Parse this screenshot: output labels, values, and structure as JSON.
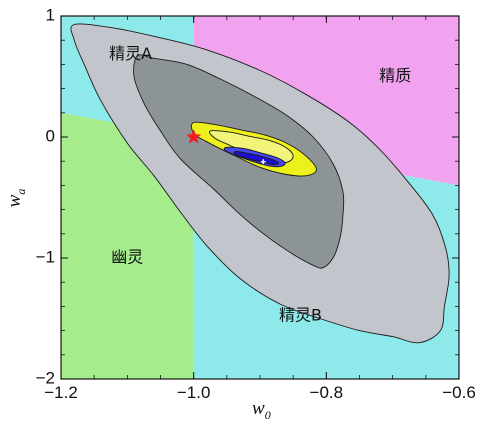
{
  "chart_data": {
    "type": "contour",
    "title": "",
    "xlabel": {
      "symbol": "w",
      "subscript": "0"
    },
    "ylabel": {
      "symbol": "w",
      "subscript": "a"
    },
    "xlim": [
      -1.2,
      -0.6
    ],
    "ylim": [
      -2,
      1
    ],
    "xticks": [
      {
        "value": -1.2,
        "label": "−1.2"
      },
      {
        "value": -1.0,
        "label": "−1.0"
      },
      {
        "value": -0.8,
        "label": "−0.8"
      },
      {
        "value": -0.6,
        "label": "−0.6"
      }
    ],
    "yticks": [
      {
        "value": 1,
        "label": "1"
      },
      {
        "value": 0,
        "label": "0"
      },
      {
        "value": -1,
        "label": "−1"
      },
      {
        "value": -2,
        "label": "−2"
      }
    ],
    "regions": [
      {
        "name": "ghost",
        "label": "幽灵",
        "color": "#a4ec8c",
        "polygon": [
          [
            -1.2,
            0.2
          ],
          [
            -1.0,
            0.0
          ],
          [
            -1.0,
            -2.0
          ],
          [
            -1.2,
            -2.0
          ]
        ],
        "label_at": [
          -1.1,
          -1.0
        ]
      },
      {
        "name": "phantom-a",
        "label": "精灵A",
        "color": "#8eeaea",
        "polygon": [
          [
            -1.2,
            1.0
          ],
          [
            -1.0,
            1.0
          ],
          [
            -1.0,
            0.0
          ],
          [
            -1.2,
            0.2
          ]
        ],
        "label_at": [
          -1.095,
          0.68
        ]
      },
      {
        "name": "quintessence",
        "label": "精质",
        "color": "#f2a3f0",
        "polygon": [
          [
            -1.0,
            1.0
          ],
          [
            -0.6,
            1.0
          ],
          [
            -0.6,
            -0.4
          ],
          [
            -1.0,
            0.0
          ]
        ],
        "label_at": [
          -0.696,
          0.5
        ]
      },
      {
        "name": "phantom-b",
        "label": "精灵B",
        "color": "#8eeaea",
        "polygon": [
          [
            -1.0,
            0.0
          ],
          [
            -0.6,
            -0.4
          ],
          [
            -0.6,
            -2.0
          ],
          [
            -1.0,
            -2.0
          ]
        ],
        "label_at": [
          -0.839,
          -1.48
        ]
      }
    ],
    "contours": [
      {
        "level": "outer",
        "color": "#c2c6cc",
        "points": [
          [
            -1.18,
            0.93
          ],
          [
            -1.12,
            0.9
          ],
          [
            -1.05,
            0.82
          ],
          [
            -0.98,
            0.72
          ],
          [
            -0.9,
            0.55
          ],
          [
            -0.83,
            0.35
          ],
          [
            -0.765,
            0.12
          ],
          [
            -0.72,
            -0.1
          ],
          [
            -0.68,
            -0.35
          ],
          [
            -0.64,
            -0.64
          ],
          [
            -0.62,
            -0.92
          ],
          [
            -0.615,
            -1.15
          ],
          [
            -0.622,
            -1.4
          ],
          [
            -0.628,
            -1.6
          ],
          [
            -0.66,
            -1.7
          ],
          [
            -0.7,
            -1.65
          ],
          [
            -0.75,
            -1.6
          ],
          [
            -0.81,
            -1.5
          ],
          [
            -0.87,
            -1.38
          ],
          [
            -0.93,
            -1.17
          ],
          [
            -0.98,
            -0.9
          ],
          [
            -1.02,
            -0.62
          ],
          [
            -1.06,
            -0.32
          ],
          [
            -1.1,
            -0.05
          ],
          [
            -1.14,
            0.3
          ],
          [
            -1.165,
            0.6
          ],
          [
            -1.18,
            0.8
          ]
        ]
      },
      {
        "level": "inner",
        "color": "#8c9497",
        "points": [
          [
            -1.085,
            0.67
          ],
          [
            -1.06,
            0.65
          ],
          [
            -1.01,
            0.6
          ],
          [
            -0.96,
            0.48
          ],
          [
            -0.91,
            0.34
          ],
          [
            -0.86,
            0.18
          ],
          [
            -0.82,
            0.0
          ],
          [
            -0.79,
            -0.22
          ],
          [
            -0.775,
            -0.45
          ],
          [
            -0.775,
            -0.65
          ],
          [
            -0.78,
            -0.85
          ],
          [
            -0.79,
            -1.0
          ],
          [
            -0.805,
            -1.08
          ],
          [
            -0.82,
            -1.06
          ],
          [
            -0.85,
            -0.97
          ],
          [
            -0.89,
            -0.82
          ],
          [
            -0.93,
            -0.64
          ],
          [
            -0.97,
            -0.43
          ],
          [
            -1.02,
            -0.18
          ],
          [
            -1.05,
            0.05
          ],
          [
            -1.075,
            0.28
          ],
          [
            -1.09,
            0.5
          ]
        ]
      },
      {
        "level": "2-sigma",
        "color": "#eef01c",
        "points": [
          [
            -1.0,
            0.12
          ],
          [
            -0.965,
            0.1
          ],
          [
            -0.93,
            0.06
          ],
          [
            -0.895,
            0.02
          ],
          [
            -0.86,
            -0.05
          ],
          [
            -0.83,
            -0.16
          ],
          [
            -0.815,
            -0.27
          ],
          [
            -0.83,
            -0.32
          ],
          [
            -0.86,
            -0.31
          ],
          [
            -0.9,
            -0.25
          ],
          [
            -0.94,
            -0.15
          ],
          [
            -0.98,
            -0.04
          ],
          [
            -1.0,
            0.03
          ]
        ]
      },
      {
        "level": "1-sigma",
        "color": "#f2f47a",
        "points": [
          [
            -0.975,
            0.05
          ],
          [
            -0.945,
            0.04
          ],
          [
            -0.915,
            0.005
          ],
          [
            -0.885,
            -0.03
          ],
          [
            -0.86,
            -0.09
          ],
          [
            -0.85,
            -0.16
          ],
          [
            -0.86,
            -0.21
          ],
          [
            -0.885,
            -0.2
          ],
          [
            -0.915,
            -0.14
          ],
          [
            -0.945,
            -0.07
          ],
          [
            -0.968,
            -0.01
          ]
        ]
      },
      {
        "level": "blue-1",
        "color": "#4848ee",
        "points": [
          [
            -0.95,
            -0.085
          ],
          [
            -0.925,
            -0.095
          ],
          [
            -0.9,
            -0.13
          ],
          [
            -0.875,
            -0.17
          ],
          [
            -0.862,
            -0.215
          ],
          [
            -0.87,
            -0.245
          ],
          [
            -0.89,
            -0.235
          ],
          [
            -0.915,
            -0.195
          ],
          [
            -0.94,
            -0.145
          ],
          [
            -0.953,
            -0.11
          ]
        ]
      },
      {
        "level": "blue-0",
        "color": "#1d0fd0",
        "points": [
          [
            -0.935,
            -0.12
          ],
          [
            -0.91,
            -0.145
          ],
          [
            -0.885,
            -0.18
          ],
          [
            -0.872,
            -0.215
          ],
          [
            -0.88,
            -0.228
          ],
          [
            -0.9,
            -0.205
          ],
          [
            -0.925,
            -0.17
          ],
          [
            -0.938,
            -0.14
          ]
        ]
      }
    ],
    "markers": [
      {
        "name": "lcdm-point",
        "symbol": "star",
        "color": "#ee1f1f",
        "x": -1.0,
        "y": 0.0
      },
      {
        "name": "best-fit-point",
        "symbol": "cross",
        "color": "#ffffff",
        "x": -0.895,
        "y": -0.205
      }
    ]
  }
}
